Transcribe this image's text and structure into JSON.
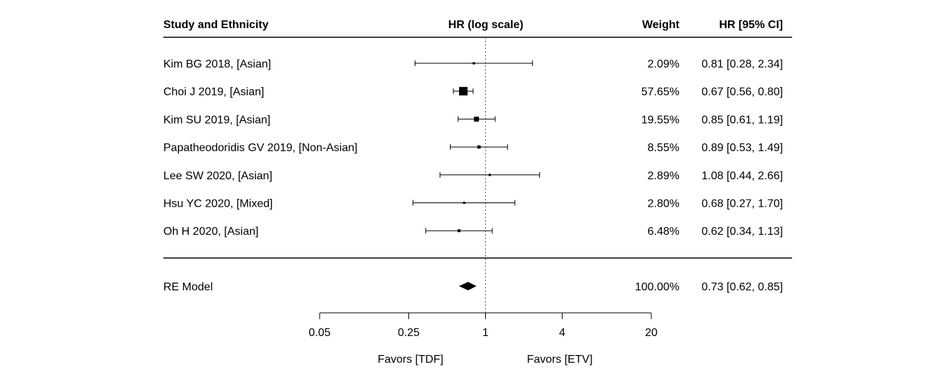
{
  "chart_data": {
    "type": "forest",
    "headers": {
      "study": "Study and Ethnicity",
      "axis": "HR (log scale)",
      "weight": "Weight",
      "ci": "HR [95% CI]"
    },
    "x_scale": "log",
    "xlim": [
      0.05,
      20
    ],
    "reference_line": 1,
    "x_ticks": [
      {
        "value": 0.05,
        "label": "0.05"
      },
      {
        "value": 0.25,
        "label": "0.25"
      },
      {
        "value": 1,
        "label": "1"
      },
      {
        "value": 4,
        "label": "4"
      },
      {
        "value": 20,
        "label": "20"
      }
    ],
    "favors_left": "Favors [TDF]",
    "favors_right": "Favors [ETV]",
    "studies": [
      {
        "label": "Kim BG 2018,  [Asian]",
        "hr": 0.81,
        "lo": 0.28,
        "hi": 2.34,
        "weight": 2.09,
        "weight_text": "2.09%",
        "ci_text": "0.81 [0.28, 2.34]"
      },
      {
        "label": "Choi J 2019,  [Asian]",
        "hr": 0.67,
        "lo": 0.56,
        "hi": 0.8,
        "weight": 57.65,
        "weight_text": "57.65%",
        "ci_text": "0.67 [0.56, 0.80]"
      },
      {
        "label": "Kim SU 2019,  [Asian]",
        "hr": 0.85,
        "lo": 0.61,
        "hi": 1.19,
        "weight": 19.55,
        "weight_text": "19.55%",
        "ci_text": "0.85 [0.61, 1.19]"
      },
      {
        "label": "Papatheodoridis GV 2019,  [Non-Asian]",
        "hr": 0.89,
        "lo": 0.53,
        "hi": 1.49,
        "weight": 8.55,
        "weight_text": "8.55%",
        "ci_text": "0.89 [0.53, 1.49]"
      },
      {
        "label": "Lee SW 2020,  [Asian]",
        "hr": 1.08,
        "lo": 0.44,
        "hi": 2.66,
        "weight": 2.89,
        "weight_text": "2.89%",
        "ci_text": "1.08 [0.44, 2.66]"
      },
      {
        "label": "Hsu YC 2020,  [Mixed]",
        "hr": 0.68,
        "lo": 0.27,
        "hi": 1.7,
        "weight": 2.8,
        "weight_text": "2.80%",
        "ci_text": "0.68 [0.27, 1.70]"
      },
      {
        "label": "Oh H 2020,  [Asian]",
        "hr": 0.62,
        "lo": 0.34,
        "hi": 1.13,
        "weight": 6.48,
        "weight_text": "6.48%",
        "ci_text": "0.62 [0.34, 1.13]"
      }
    ],
    "summary": {
      "label": "RE Model",
      "hr": 0.73,
      "lo": 0.62,
      "hi": 0.85,
      "weight_text": "100.00%",
      "ci_text": "0.73 [0.62, 0.85]"
    }
  }
}
